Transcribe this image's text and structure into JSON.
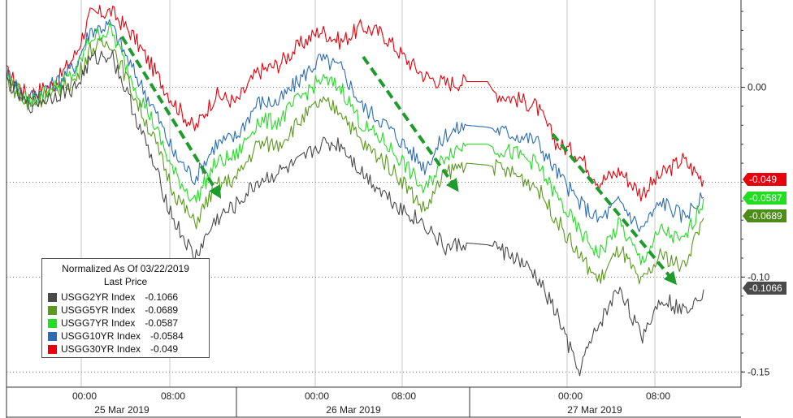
{
  "chart_data": {
    "type": "line",
    "legend": {
      "title": "Normalized As Of 03/22/2019",
      "subtitle": "Last Price",
      "entries": [
        {
          "label": "USGG2YR Index",
          "value": "-0.1066"
        },
        {
          "label": "USGG5YR Index",
          "value": "-0.0689"
        },
        {
          "label": "USGG7YR Index",
          "value": "-0.0587"
        },
        {
          "label": "USGG10YR Index",
          "value": "-0.0584"
        },
        {
          "label": "USGG30YR Index",
          "value": "-0.049"
        }
      ]
    },
    "y_ticks": [
      "0.00",
      "-0.10",
      "-0.15"
    ],
    "ylim": [
      -0.158,
      0.046
    ],
    "x_time_ticks": [
      "00:00",
      "08:00",
      "00:00",
      "08:00",
      "00:00",
      "08:00"
    ],
    "x_date_labels": [
      "25 Mar 2019",
      "26 Mar 2019",
      "27 Mar 2019"
    ],
    "value_tags": [
      {
        "text": "-0.049",
        "value": -0.049,
        "color": "#e8000b",
        "text_color": "#ffffff"
      },
      {
        "text": "-0.0587",
        "value": -0.0587,
        "color": "#22dd22",
        "text_color": "#ffffff"
      },
      {
        "text": "-0.0689",
        "value": -0.0689,
        "color": "#4e8c1a",
        "text_color": "#ffffff"
      },
      {
        "text": "-0.1066",
        "value": -0.1066,
        "color": "#4a4a4a",
        "text_color": "#ffffff"
      }
    ],
    "series": [
      {
        "name": "USGG30YR Index",
        "color": "#e8000b",
        "points": [
          [
            0,
            0.008
          ],
          [
            6,
            -0.004
          ],
          [
            14,
            0.002
          ],
          [
            20,
            0.018
          ],
          [
            24,
            0.038
          ],
          [
            30,
            0.04
          ],
          [
            36,
            0.028
          ],
          [
            42,
            0.01
          ],
          [
            48,
            -0.008
          ],
          [
            54,
            -0.022
          ],
          [
            60,
            -0.004
          ],
          [
            66,
            -0.008
          ],
          [
            72,
            0.008
          ],
          [
            78,
            0.012
          ],
          [
            84,
            0.022
          ],
          [
            90,
            0.03
          ],
          [
            96,
            0.024
          ],
          [
            102,
            0.032
          ],
          [
            108,
            0.028
          ],
          [
            114,
            0.016
          ],
          [
            120,
            0.006
          ],
          [
            126,
            0.002
          ],
          [
            132,
            0.003
          ],
          [
            138,
            0.003
          ],
          [
            140,
            -0.003
          ],
          [
            146,
            -0.006
          ],
          [
            152,
            -0.01
          ],
          [
            158,
            -0.03
          ],
          [
            164,
            -0.035
          ],
          [
            170,
            -0.05
          ],
          [
            176,
            -0.044
          ],
          [
            182,
            -0.056
          ],
          [
            188,
            -0.046
          ],
          [
            194,
            -0.038
          ],
          [
            200,
            -0.049
          ]
        ]
      },
      {
        "name": "USGG10YR Index",
        "color": "#2a6db5",
        "points": [
          [
            0,
            0.008
          ],
          [
            6,
            -0.006
          ],
          [
            14,
            0.002
          ],
          [
            20,
            0.012
          ],
          [
            24,
            0.03
          ],
          [
            30,
            0.033
          ],
          [
            36,
            0.01
          ],
          [
            42,
            -0.01
          ],
          [
            48,
            -0.035
          ],
          [
            54,
            -0.048
          ],
          [
            60,
            -0.03
          ],
          [
            66,
            -0.026
          ],
          [
            72,
            -0.008
          ],
          [
            78,
            -0.008
          ],
          [
            84,
            0.004
          ],
          [
            90,
            0.015
          ],
          [
            96,
            0.01
          ],
          [
            102,
            -0.01
          ],
          [
            108,
            -0.018
          ],
          [
            114,
            -0.03
          ],
          [
            120,
            -0.042
          ],
          [
            126,
            -0.025
          ],
          [
            132,
            -0.02
          ],
          [
            138,
            -0.021
          ],
          [
            140,
            -0.022
          ],
          [
            146,
            -0.025
          ],
          [
            152,
            -0.028
          ],
          [
            158,
            -0.045
          ],
          [
            164,
            -0.06
          ],
          [
            170,
            -0.07
          ],
          [
            176,
            -0.06
          ],
          [
            182,
            -0.075
          ],
          [
            188,
            -0.06
          ],
          [
            194,
            -0.068
          ],
          [
            200,
            -0.058
          ]
        ]
      },
      {
        "name": "USGG7YR Index",
        "color": "#22dd22",
        "points": [
          [
            0,
            0.006
          ],
          [
            6,
            -0.008
          ],
          [
            14,
            0.0
          ],
          [
            20,
            0.008
          ],
          [
            24,
            0.026
          ],
          [
            30,
            0.03
          ],
          [
            36,
            0.004
          ],
          [
            42,
            -0.018
          ],
          [
            48,
            -0.045
          ],
          [
            54,
            -0.06
          ],
          [
            60,
            -0.04
          ],
          [
            66,
            -0.036
          ],
          [
            72,
            -0.018
          ],
          [
            78,
            -0.018
          ],
          [
            84,
            -0.006
          ],
          [
            90,
            0.004
          ],
          [
            96,
            0.0
          ],
          [
            102,
            -0.02
          ],
          [
            108,
            -0.028
          ],
          [
            114,
            -0.04
          ],
          [
            120,
            -0.055
          ],
          [
            126,
            -0.035
          ],
          [
            132,
            -0.03
          ],
          [
            138,
            -0.03
          ],
          [
            140,
            -0.032
          ],
          [
            146,
            -0.035
          ],
          [
            152,
            -0.04
          ],
          [
            158,
            -0.058
          ],
          [
            164,
            -0.075
          ],
          [
            170,
            -0.088
          ],
          [
            176,
            -0.072
          ],
          [
            182,
            -0.092
          ],
          [
            188,
            -0.075
          ],
          [
            194,
            -0.082
          ],
          [
            200,
            -0.0587
          ]
        ]
      },
      {
        "name": "USGG5YR Index",
        "color": "#5a9a1c",
        "points": [
          [
            0,
            0.004
          ],
          [
            6,
            -0.01
          ],
          [
            14,
            -0.002
          ],
          [
            20,
            0.004
          ],
          [
            24,
            0.02
          ],
          [
            30,
            0.024
          ],
          [
            36,
            -0.002
          ],
          [
            42,
            -0.026
          ],
          [
            48,
            -0.055
          ],
          [
            54,
            -0.072
          ],
          [
            60,
            -0.052
          ],
          [
            66,
            -0.048
          ],
          [
            72,
            -0.03
          ],
          [
            78,
            -0.03
          ],
          [
            84,
            -0.018
          ],
          [
            90,
            -0.008
          ],
          [
            96,
            -0.012
          ],
          [
            102,
            -0.03
          ],
          [
            108,
            -0.038
          ],
          [
            114,
            -0.05
          ],
          [
            120,
            -0.065
          ],
          [
            126,
            -0.045
          ],
          [
            132,
            -0.04
          ],
          [
            138,
            -0.041
          ],
          [
            140,
            -0.042
          ],
          [
            146,
            -0.046
          ],
          [
            152,
            -0.052
          ],
          [
            158,
            -0.07
          ],
          [
            164,
            -0.088
          ],
          [
            170,
            -0.102
          ],
          [
            176,
            -0.085
          ],
          [
            182,
            -0.104
          ],
          [
            188,
            -0.088
          ],
          [
            194,
            -0.095
          ],
          [
            200,
            -0.0689
          ]
        ]
      },
      {
        "name": "USGG2YR Index",
        "color": "#4a4a4a",
        "points": [
          [
            0,
            0.004
          ],
          [
            6,
            -0.01
          ],
          [
            14,
            -0.004
          ],
          [
            20,
            0.0
          ],
          [
            24,
            0.014
          ],
          [
            30,
            0.018
          ],
          [
            36,
            -0.01
          ],
          [
            42,
            -0.04
          ],
          [
            48,
            -0.07
          ],
          [
            54,
            -0.09
          ],
          [
            60,
            -0.07
          ],
          [
            66,
            -0.062
          ],
          [
            72,
            -0.05
          ],
          [
            78,
            -0.045
          ],
          [
            84,
            -0.04
          ],
          [
            90,
            -0.03
          ],
          [
            96,
            -0.03
          ],
          [
            102,
            -0.045
          ],
          [
            108,
            -0.055
          ],
          [
            114,
            -0.065
          ],
          [
            120,
            -0.072
          ],
          [
            126,
            -0.085
          ],
          [
            132,
            -0.082
          ],
          [
            138,
            -0.083
          ],
          [
            140,
            -0.084
          ],
          [
            146,
            -0.09
          ],
          [
            152,
            -0.1
          ],
          [
            158,
            -0.12
          ],
          [
            164,
            -0.15
          ],
          [
            170,
            -0.125
          ],
          [
            176,
            -0.105
          ],
          [
            182,
            -0.132
          ],
          [
            188,
            -0.11
          ],
          [
            194,
            -0.118
          ],
          [
            200,
            -0.1066
          ]
        ]
      }
    ]
  }
}
